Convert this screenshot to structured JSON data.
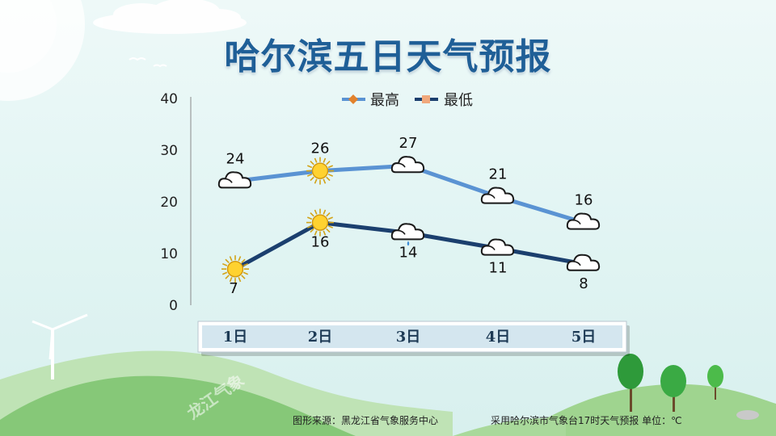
{
  "title": "哈尔滨五日天气预报",
  "footer": {
    "source": "图形来源：黑龙江省气象服务中心",
    "note": "采用哈尔滨市气象台17时天气预报 单位：℃"
  },
  "watermark": "龙江气象",
  "colors": {
    "high_line": "#5a93d3",
    "low_line": "#1b3f6e",
    "high_marker": "#e2822c",
    "low_marker": "#f0a87c",
    "title": "#1f5f97"
  },
  "chart_data": {
    "type": "line",
    "categories": [
      "1日",
      "2日",
      "3日",
      "4日",
      "5日"
    ],
    "ylim": [
      0,
      40
    ],
    "yticks": [
      "0",
      "10",
      "20",
      "30",
      "40"
    ],
    "grid": false,
    "legend_position": "top",
    "series": [
      {
        "name": "最高",
        "values": [
          24,
          26,
          27,
          21,
          16
        ],
        "labels": [
          "24",
          "26",
          "27",
          "21",
          "16"
        ],
        "icons": [
          "cloud-icon",
          "sun-icon",
          "cloud-icon",
          "cloud-icon",
          "cloud-icon"
        ]
      },
      {
        "name": "最低",
        "values": [
          7,
          16,
          14,
          11,
          8
        ],
        "labels": [
          "7",
          "16",
          "14",
          "11",
          "8"
        ],
        "icons": [
          "sun-icon",
          "sun-icon",
          "rain-cloud-icon",
          "cloud-icon",
          "cloud-icon"
        ]
      }
    ]
  }
}
